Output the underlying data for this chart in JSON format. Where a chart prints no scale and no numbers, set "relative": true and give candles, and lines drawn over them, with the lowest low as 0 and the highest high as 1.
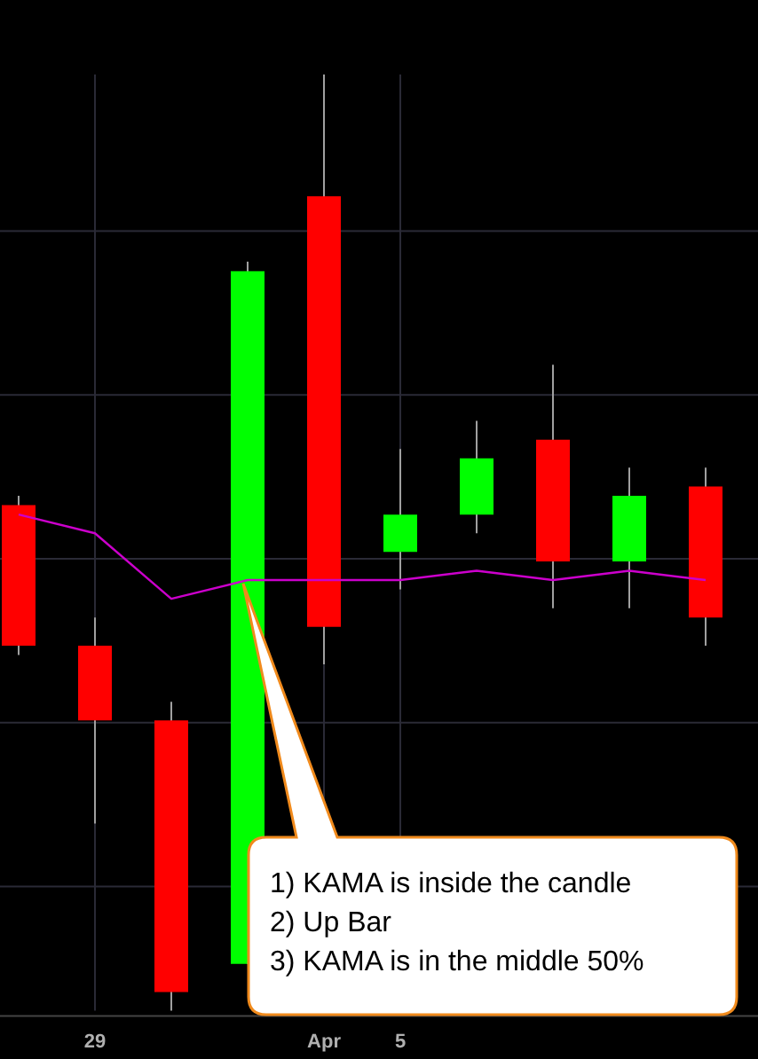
{
  "chart_data": {
    "type": "candlestick",
    "relative": true,
    "categories": [
      null,
      "29",
      null,
      null,
      "Apr",
      "5",
      null,
      null,
      null,
      null
    ],
    "ohlc": [
      [
        0.54,
        0.55,
        0.38,
        0.39
      ],
      [
        0.39,
        0.42,
        0.2,
        0.31
      ],
      [
        0.31,
        0.33,
        0,
        0.02
      ],
      [
        0.05,
        0.8,
        0.05,
        0.79
      ],
      [
        0.87,
        1,
        0.37,
        0.41
      ],
      [
        0.49,
        0.6,
        0.45,
        0.53
      ],
      [
        0.53,
        0.63,
        0.51,
        0.59
      ],
      [
        0.61,
        0.69,
        0.43,
        0.48
      ],
      [
        0.48,
        0.58,
        0.43,
        0.55
      ],
      [
        0.56,
        0.58,
        0.39,
        0.42
      ]
    ],
    "colors": [
      "#ff0000",
      "#ff0000",
      "#ff0000",
      "#00ff00",
      "#ff0000",
      "#00ff00",
      "#00ff00",
      "#ff0000",
      "#00ff00",
      "#ff0000"
    ],
    "series": [
      {
        "type": "line",
        "color": "#cc00cc",
        "values": [
          0.53,
          0.51,
          0.44,
          0.46,
          0.46,
          0.46,
          0.47,
          0.46,
          0.47,
          0.46
        ]
      }
    ],
    "grid": true,
    "legend": false,
    "annotations": [
      "1) KAMA is inside the candle\n2) Up Bar\n3) KAMA is in the middle 50%"
    ]
  }
}
